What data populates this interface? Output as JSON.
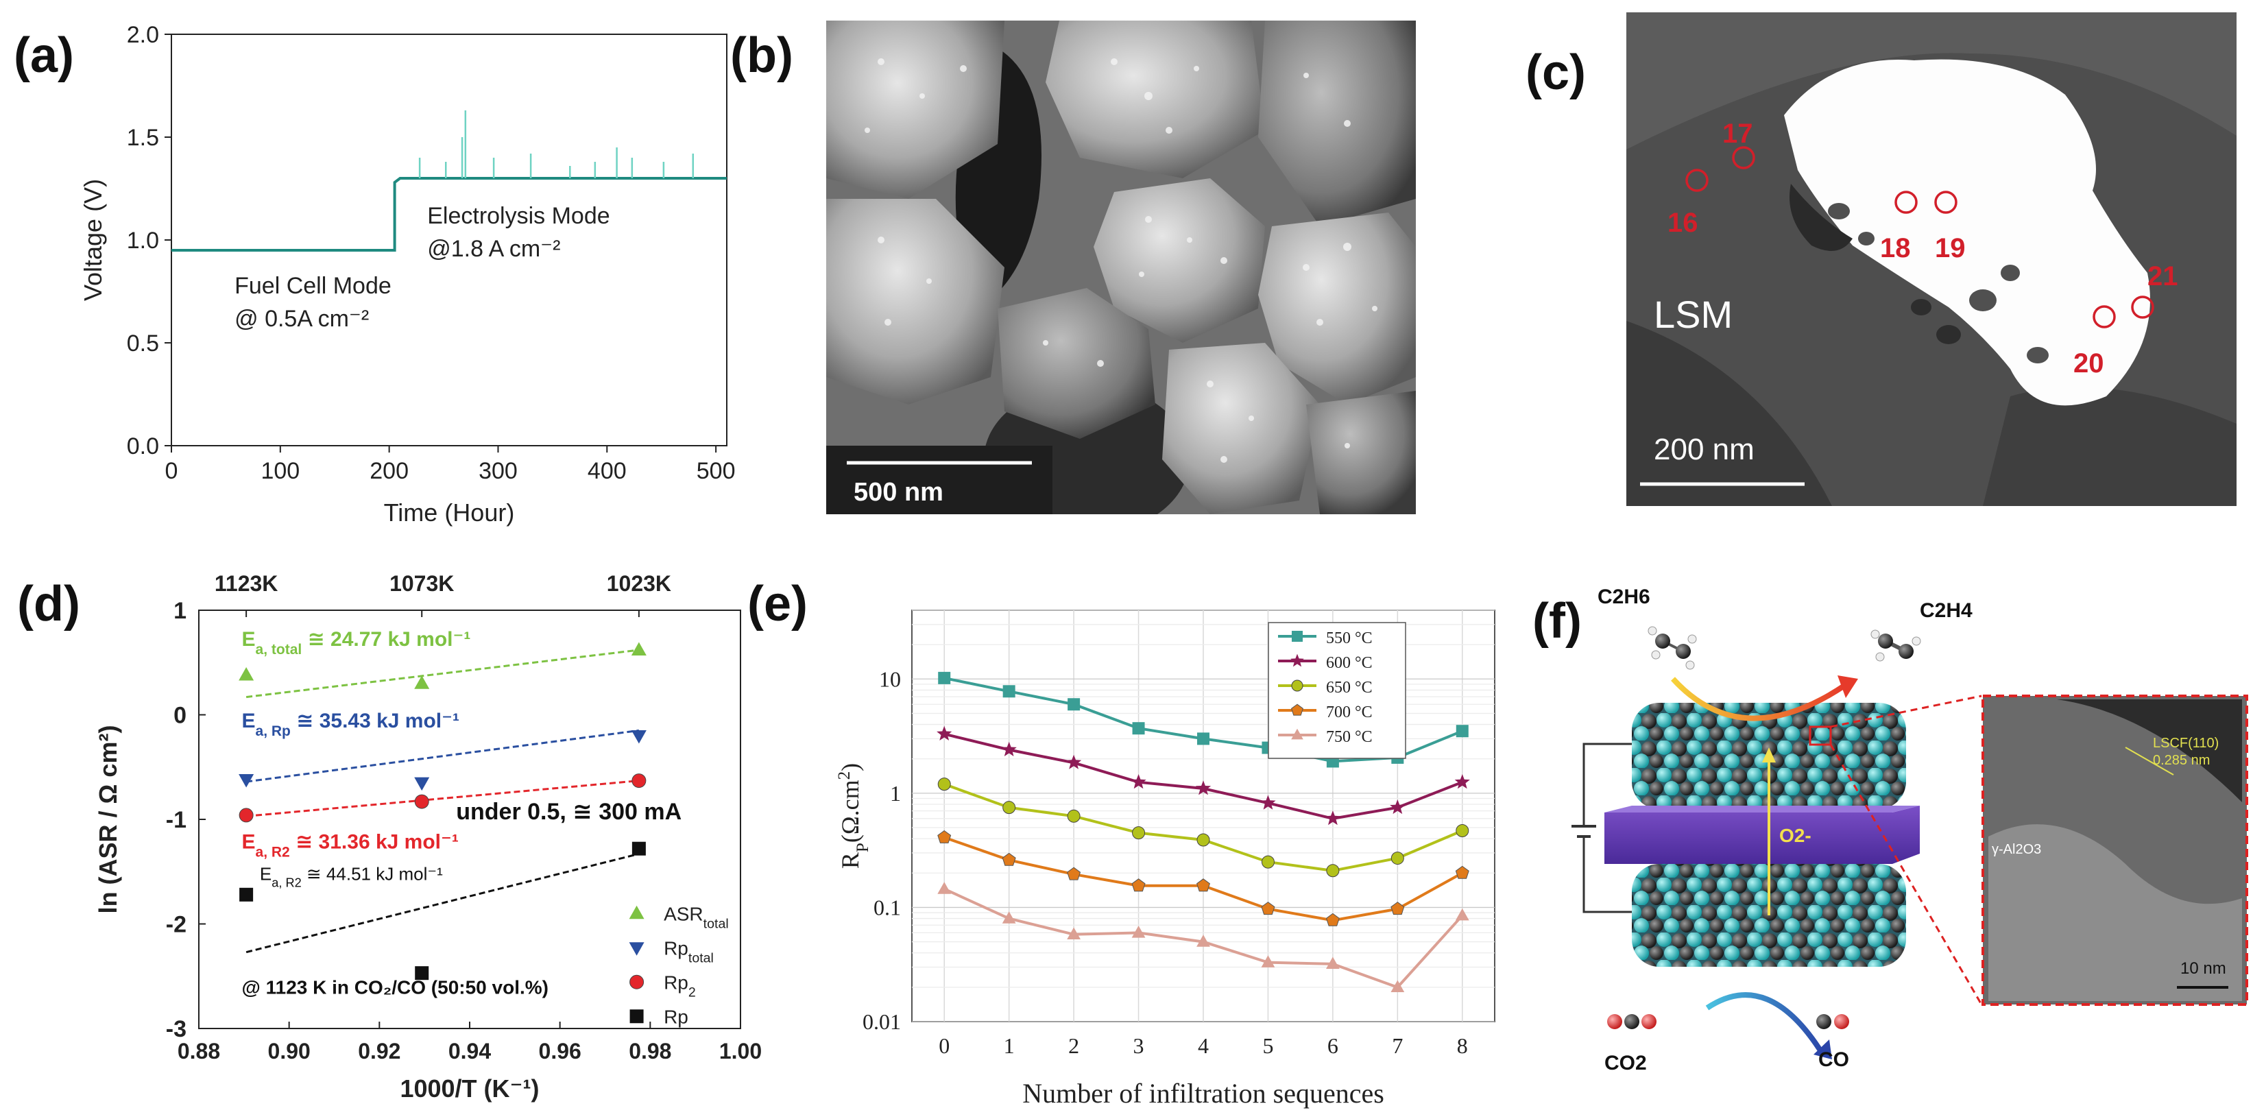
{
  "panels": {
    "a": {
      "label": "(a)"
    },
    "b": {
      "label": "(b)",
      "scalebar": "500 nm"
    },
    "c": {
      "label": "(c)",
      "scalebar": "200 nm",
      "region": "LSM",
      "points": [
        "16",
        "17",
        "18",
        "19",
        "20",
        "21"
      ]
    },
    "d": {
      "label": "(d)"
    },
    "e": {
      "label": "(e)"
    },
    "f": {
      "label": "(f)",
      "reactant_top": "C2H6",
      "product_top": "C2H4",
      "reactant_bottom": "CO2",
      "product_bottom": "CO",
      "ion": "O2-",
      "inset_plane": "LSCF(110)",
      "inset_spacing": "0.285 nm",
      "inset_phase": "γ-Al2O3",
      "inset_scalebar": "10 nm"
    }
  },
  "chart_data": [
    {
      "id": "a",
      "type": "line",
      "xlabel": "Time (Hour)",
      "ylabel": "Voltage (V)",
      "xlim": [
        0,
        510
      ],
      "ylim": [
        0.0,
        2.0
      ],
      "xticks": [
        0,
        100,
        200,
        300,
        400,
        500
      ],
      "yticks": [
        0.0,
        0.5,
        1.0,
        1.5,
        2.0
      ],
      "annotations": [
        {
          "text": "Fuel Cell Mode",
          "sub": "@ 0.5A cm⁻²"
        },
        {
          "text": "Electrolysis Mode",
          "sub": "@1.8 A cm⁻²"
        }
      ],
      "series": [
        {
          "color": "#1f8a80",
          "x": [
            0,
            205,
            205,
            210,
            510
          ],
          "y": [
            0.95,
            0.95,
            1.28,
            1.3,
            1.3
          ]
        }
      ],
      "spikes": [
        {
          "x": 228,
          "y": 1.4
        },
        {
          "x": 252,
          "y": 1.38
        },
        {
          "x": 267,
          "y": 1.5
        },
        {
          "x": 270,
          "y": 1.63
        },
        {
          "x": 296,
          "y": 1.4
        },
        {
          "x": 330,
          "y": 1.42
        },
        {
          "x": 366,
          "y": 1.36
        },
        {
          "x": 389,
          "y": 1.38
        },
        {
          "x": 409,
          "y": 1.45
        },
        {
          "x": 423,
          "y": 1.4
        },
        {
          "x": 452,
          "y": 1.38
        },
        {
          "x": 479,
          "y": 1.42
        }
      ]
    },
    {
      "id": "d",
      "type": "scatter",
      "xlabel": "1000/T (K⁻¹)",
      "ylabel": "ln (ASR / Ω cm²)",
      "xlim": [
        0.88,
        1.0
      ],
      "ylim": [
        -3,
        1
      ],
      "xticks": [
        0.88,
        0.9,
        0.92,
        0.94,
        0.96,
        0.98,
        1.0
      ],
      "yticks": [
        -3,
        -2,
        -1,
        0,
        1
      ],
      "top_ticks": [
        {
          "x": 0.8905,
          "label": "1123K"
        },
        {
          "x": 0.9294,
          "label": "1073K"
        },
        {
          "x": 0.9775,
          "label": "1023K"
        }
      ],
      "annotations": {
        "note": "under 0.5, ≅ 300 mA",
        "condition": "@ 1123 K in CO₂/CO (50:50 vol.%)",
        "ea_total": "E",
        "ea_total_sub": "a, total",
        "ea_total_val": " ≅ 24.77 kJ mol⁻¹",
        "ea_rp": "E",
        "ea_rp_sub": "a, Rp",
        "ea_rp_val": " ≅ 35.43 kJ mol⁻¹",
        "ea_r2": "E",
        "ea_r2_sub": "a, R2",
        "ea_r2_val": " ≅ 31.36 kJ mol⁻¹",
        "ea_r2b": "E",
        "ea_r2b_sub": "a, R2",
        "ea_r2b_val": " ≅ 44.51 kJ mol⁻¹"
      },
      "series": [
        {
          "name": "ASR",
          "name_sub": "total",
          "color": "#7dc242",
          "marker": "triangle-up",
          "x": [
            0.8905,
            0.9294,
            0.9775
          ],
          "y": [
            0.38,
            0.3,
            0.62
          ],
          "fit": [
            [
              0.8905,
              0.17
            ],
            [
              0.9775,
              0.62
            ]
          ]
        },
        {
          "name": "Rp",
          "name_sub": "total",
          "color": "#2a4fa0",
          "marker": "triangle-down",
          "x": [
            0.8905,
            0.9294,
            0.9775
          ],
          "y": [
            -0.62,
            -0.65,
            -0.2
          ],
          "fit": [
            [
              0.8905,
              -0.64
            ],
            [
              0.9775,
              -0.15
            ]
          ]
        },
        {
          "name": "Rp",
          "name_sub": "2",
          "color": "#e3262b",
          "marker": "circle",
          "x": [
            0.8905,
            0.9294,
            0.9775
          ],
          "y": [
            -0.96,
            -0.83,
            -0.63
          ],
          "fit": [
            [
              0.8905,
              -0.97
            ],
            [
              0.9775,
              -0.63
            ]
          ]
        },
        {
          "name": "Rp",
          "name_sub": "",
          "color": "#111111",
          "marker": "square",
          "x": [
            0.8905,
            0.9294,
            0.9775
          ],
          "y": [
            -1.72,
            -2.47,
            -1.28
          ],
          "fit": [
            [
              0.8905,
              -2.27
            ],
            [
              0.9775,
              -1.33
            ]
          ]
        }
      ]
    },
    {
      "id": "e",
      "type": "line",
      "yscale": "log",
      "xlabel": "Number of infiltration sequences",
      "ylabel": "R",
      "ylabel_sub": "P",
      "ylabel_rest": "(Ω.cm",
      "ylabel_sup": "2",
      "ylabel_end": ")",
      "xlim": [
        -0.5,
        8.5
      ],
      "ylim": [
        0.01,
        40
      ],
      "xticks": [
        0,
        1,
        2,
        3,
        4,
        5,
        6,
        7,
        8
      ],
      "yticks": [
        {
          "v": 0.01,
          "label": "0.01"
        },
        {
          "v": 0.1,
          "label": "0.1"
        },
        {
          "v": 1,
          "label": "1"
        },
        {
          "v": 10,
          "label": "10"
        }
      ],
      "x": [
        0,
        1,
        2,
        3,
        4,
        5,
        6,
        7,
        8
      ],
      "series": [
        {
          "name": "550 °C",
          "color": "#3a9e95",
          "marker": "square",
          "values": [
            10.2,
            7.8,
            6.0,
            3.7,
            3.0,
            2.5,
            1.9,
            2.05,
            3.5
          ]
        },
        {
          "name": "600 °C",
          "color": "#8e1b56",
          "marker": "star",
          "values": [
            3.3,
            2.4,
            1.85,
            1.25,
            1.1,
            0.82,
            0.6,
            0.75,
            1.25
          ]
        },
        {
          "name": "650 °C",
          "color": "#b2c11a",
          "marker": "circle",
          "values": [
            1.2,
            0.75,
            0.63,
            0.45,
            0.39,
            0.25,
            0.21,
            0.27,
            0.47
          ]
        },
        {
          "name": "700 °C",
          "color": "#e07a1a",
          "marker": "pentagon",
          "values": [
            0.41,
            0.26,
            0.195,
            0.155,
            0.155,
            0.097,
            0.077,
            0.097,
            0.2
          ]
        },
        {
          "name": "750 °C",
          "color": "#dba094",
          "marker": "triangle-up",
          "values": [
            0.145,
            0.08,
            0.058,
            0.06,
            0.05,
            0.033,
            0.032,
            0.02,
            0.085
          ]
        }
      ]
    }
  ]
}
